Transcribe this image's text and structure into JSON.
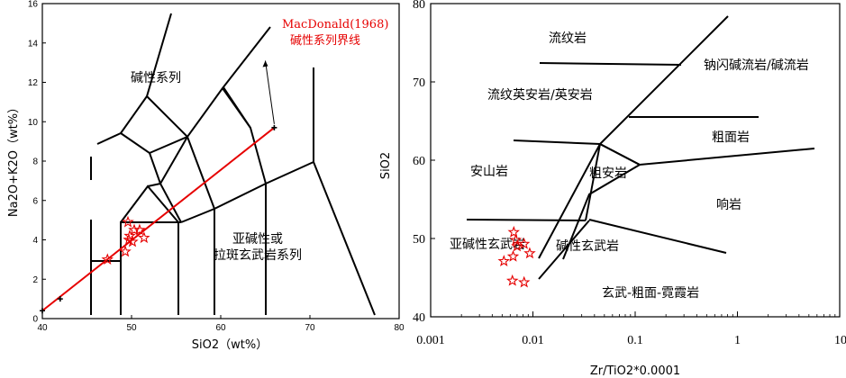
{
  "chart_data": [
    {
      "type": "scatter",
      "title": "",
      "xlabel": "SiO2（wt%）",
      "ylabel": "Na2O+K2O（wt%）",
      "xlim": [
        40,
        80
      ],
      "ylim": [
        0,
        16
      ],
      "x_ticks": [
        "40",
        "50",
        "60",
        "70",
        "80"
      ],
      "y_ticks": [
        "0",
        "2",
        "4",
        "6",
        "8",
        "10",
        "12",
        "14",
        "16"
      ],
      "field_labels": [
        "碱性系列",
        "亚碱性或",
        "拉斑玄武岩系列"
      ],
      "annotation": [
        "MacDonald(1968)",
        "碱性系列界线"
      ],
      "macdonald_line": {
        "x": [
          40,
          66
        ],
        "y": [
          0.4,
          9.7
        ]
      },
      "line_crosses": [
        [
          40,
          0.4
        ],
        [
          42,
          1.0
        ],
        [
          66,
          9.7
        ]
      ],
      "arrow_target": [
        65,
        13.1
      ],
      "points": [
        [
          49.6,
          4.9
        ],
        [
          50.3,
          4.5
        ],
        [
          49.8,
          4.2
        ],
        [
          50.1,
          3.9
        ],
        [
          50.9,
          4.5
        ],
        [
          51.4,
          4.1
        ],
        [
          49.7,
          4.0
        ],
        [
          49.3,
          3.4
        ],
        [
          47.3,
          3.0
        ]
      ],
      "colors": {
        "points": "#e60000",
        "line": "#e60000"
      }
    },
    {
      "type": "scatter",
      "title": "",
      "xlabel": "Zr/TiO2*0.0001",
      "ylabel": "SiO2",
      "x_scale": "log",
      "xlim": [
        0.001,
        10
      ],
      "ylim": [
        40,
        80
      ],
      "x_ticks": [
        "0.001",
        "0.01",
        "0.1",
        "1",
        "10"
      ],
      "y_ticks": [
        "40",
        "50",
        "60",
        "70",
        "80"
      ],
      "field_labels": [
        "流纹岩",
        "钠闪碱流岩/碱流岩",
        "流纹英安岩/英安岩",
        "粗面岩",
        "安山岩",
        "粗安岩",
        "响岩",
        "亚碱性玄武岩",
        "碱性玄武岩",
        "玄武-粗面-霓霞岩"
      ],
      "points": [
        [
          0.0065,
          50.8
        ],
        [
          0.0068,
          49.8
        ],
        [
          0.007,
          49.0
        ],
        [
          0.0082,
          49.3
        ],
        [
          0.0093,
          48.1
        ],
        [
          0.0064,
          47.7
        ],
        [
          0.0052,
          47.1
        ],
        [
          0.0063,
          44.6
        ],
        [
          0.0082,
          44.4
        ]
      ],
      "colors": {
        "points": "#e60000"
      }
    }
  ]
}
